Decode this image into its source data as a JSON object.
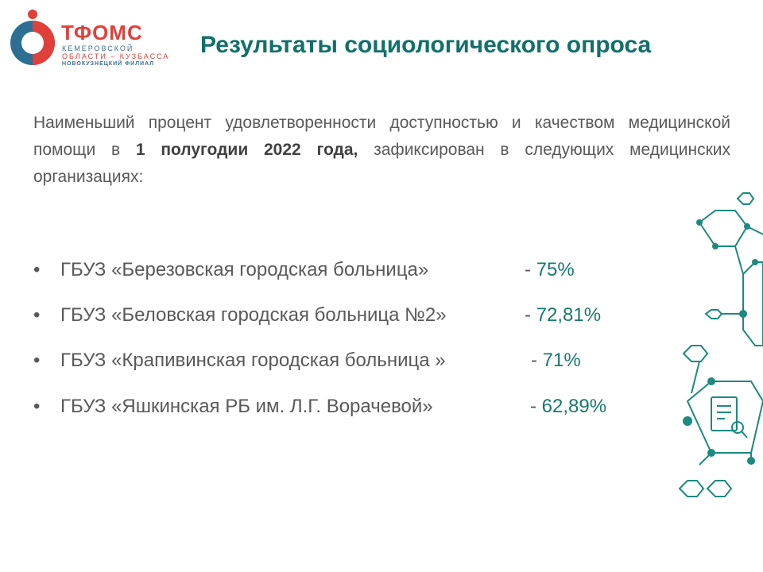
{
  "header": {
    "logo": {
      "name": "ТФОМС",
      "line1": "КЕМЕРОВСКОЙ",
      "line2": "ОБЛАСТИ – КУЗБАССА",
      "line3": "НОВОКУЗНЕЦКИЙ ФИЛИАЛ"
    },
    "title": "Результаты социологического опроса"
  },
  "intro": {
    "text1": "Наименьший процент удовлетворенности доступностью и качеством медицинской помощи в ",
    "bold": "1 полугодии 2022 года,",
    "text2": " зафиксирован в следующих медицинских организациях:"
  },
  "items": [
    {
      "name": "ГБУЗ «Березовская городская больница»",
      "prefix": "-",
      "value": "75%"
    },
    {
      "name": "ГБУЗ «Беловская городская больница №2»",
      "prefix": "-",
      "value": "72,81%"
    },
    {
      "name": "ГБУЗ «Крапивинская городская больница »",
      "prefix": "-",
      "value": "71%"
    },
    {
      "name": "ГБУЗ «Яшкинская РБ им. Л.Г. Ворачевой»",
      "prefix": "-",
      "value": "62,89%"
    }
  ]
}
